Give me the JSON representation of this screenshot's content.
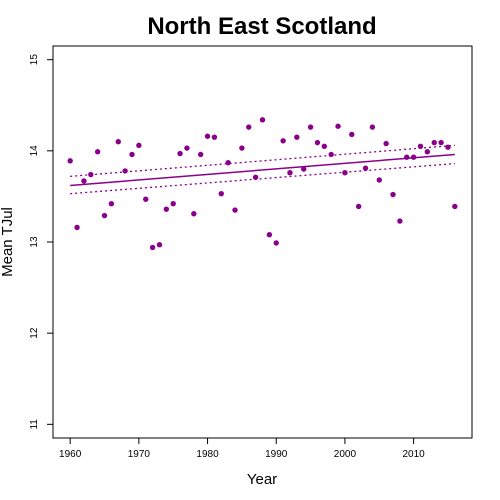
{
  "chart_data": {
    "type": "scatter",
    "title": "North East Scotland",
    "xlabel": "Year",
    "ylabel": "Mean TJul",
    "xlim": [
      1957.5,
      2018.5
    ],
    "ylim": [
      10.85,
      15.15
    ],
    "xticks": [
      1960,
      1970,
      1980,
      1990,
      2000,
      2010
    ],
    "yticks": [
      11,
      12,
      13,
      14,
      15
    ],
    "grid": false,
    "point_color": "#8B008B",
    "line_color": "#8B008B",
    "series": [
      {
        "points": [
          [
            1960,
            13.89
          ],
          [
            1961,
            13.16
          ],
          [
            1962,
            13.67
          ],
          [
            1963,
            13.74
          ],
          [
            1964,
            13.99
          ],
          [
            1965,
            13.29
          ],
          [
            1966,
            13.42
          ],
          [
            1967,
            14.1
          ],
          [
            1968,
            13.78
          ],
          [
            1969,
            13.96
          ],
          [
            1970,
            14.06
          ],
          [
            1971,
            13.47
          ],
          [
            1972,
            12.94
          ],
          [
            1973,
            12.97
          ],
          [
            1974,
            13.36
          ],
          [
            1975,
            13.42
          ],
          [
            1976,
            13.97
          ],
          [
            1977,
            14.03
          ],
          [
            1978,
            13.31
          ],
          [
            1979,
            13.96
          ],
          [
            1980,
            14.16
          ],
          [
            1981,
            14.15
          ],
          [
            1982,
            13.53
          ],
          [
            1983,
            13.87
          ],
          [
            1984,
            13.35
          ],
          [
            1985,
            14.03
          ],
          [
            1986,
            14.26
          ],
          [
            1987,
            13.71
          ],
          [
            1988,
            14.34
          ],
          [
            1989,
            13.08
          ],
          [
            1990,
            12.99
          ],
          [
            1991,
            14.11
          ],
          [
            1992,
            13.76
          ],
          [
            1993,
            14.15
          ],
          [
            1994,
            13.8
          ],
          [
            1995,
            14.26
          ],
          [
            1996,
            14.09
          ],
          [
            1997,
            14.05
          ],
          [
            1998,
            13.96
          ],
          [
            1999,
            14.27
          ],
          [
            2000,
            13.76
          ],
          [
            2001,
            14.18
          ],
          [
            2002,
            13.39
          ],
          [
            2003,
            13.81
          ],
          [
            2004,
            14.26
          ],
          [
            2005,
            13.68
          ],
          [
            2006,
            14.08
          ],
          [
            2007,
            13.52
          ],
          [
            2008,
            13.23
          ],
          [
            2009,
            13.93
          ],
          [
            2010,
            13.93
          ],
          [
            2011,
            14.05
          ],
          [
            2012,
            13.99
          ],
          [
            2013,
            14.09
          ],
          [
            2014,
            14.09
          ],
          [
            2015,
            14.04
          ],
          [
            2016,
            13.39
          ]
        ]
      }
    ],
    "trend": {
      "fit": [
        [
          1960,
          13.62
        ],
        [
          2016,
          13.96
        ]
      ],
      "upper": [
        [
          1960,
          13.72
        ],
        [
          2016,
          14.06
        ]
      ],
      "lower": [
        [
          1960,
          13.53
        ],
        [
          2016,
          13.86
        ]
      ]
    }
  }
}
